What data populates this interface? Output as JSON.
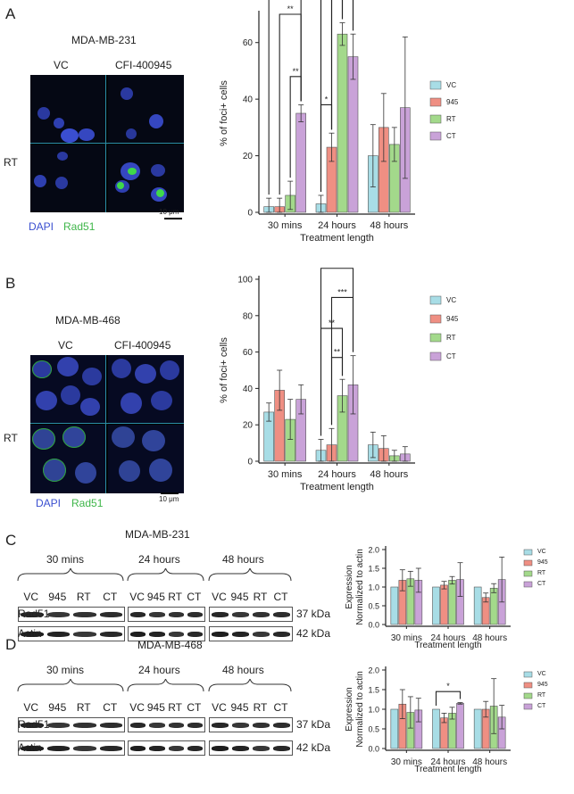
{
  "panels": {
    "A": {
      "letter": "A",
      "cell_line": "MDA-MB-231",
      "col_labels": [
        "VC",
        "CFI-400945"
      ],
      "row_label": "RT",
      "stain_labels": [
        "DAPI",
        "Rad51"
      ],
      "scale_bar": "10 μm"
    },
    "B": {
      "letter": "B",
      "cell_line": "MDA-MB-468",
      "col_labels": [
        "VC",
        "CFI-400945"
      ],
      "row_label": "RT",
      "stain_labels": [
        "DAPI",
        "Rad51"
      ],
      "scale_bar": "10 μm"
    },
    "C": {
      "letter": "C",
      "cell_line": "MDA-MB-231",
      "time_groups": [
        "30 mins",
        "24 hours",
        "48 hours"
      ],
      "lane_labels": [
        "VC",
        "945",
        "RT",
        "CT"
      ],
      "rows": [
        {
          "name": "Rad51",
          "kda": "37 kDa"
        },
        {
          "name": "Actin",
          "kda": "42 kDa"
        }
      ]
    },
    "D": {
      "letter": "D",
      "cell_line": "MDA-MB-468",
      "time_groups": [
        "30 mins",
        "24 hours",
        "48 hours"
      ],
      "lane_labels": [
        "VC",
        "945",
        "RT",
        "CT"
      ],
      "rows": [
        {
          "name": "Rad51",
          "kda": "37 kDa"
        },
        {
          "name": "Actin",
          "kda": "42 kDa"
        }
      ]
    }
  },
  "colors": {
    "VC": "#a8dde6",
    "945": "#ef8f83",
    "RT": "#a3d98b",
    "CT": "#c9a2d8",
    "dapi": "#3a4fd0",
    "rad51": "#3fb64a"
  },
  "chart_data": [
    {
      "id": "A",
      "type": "bar",
      "categories": [
        "30 mins",
        "24 hours",
        "48 hours"
      ],
      "xlabel": "Treatment length",
      "ylabel": "% of foci+ cells",
      "ylim": [
        0,
        70
      ],
      "yticks": [
        0,
        20,
        40,
        60
      ],
      "legend_position": "right",
      "series": [
        {
          "name": "VC",
          "values": [
            2,
            3,
            20
          ],
          "errors": [
            3,
            3,
            11
          ]
        },
        {
          "name": "945",
          "values": [
            2,
            23,
            30
          ],
          "errors": [
            3,
            5,
            12
          ]
        },
        {
          "name": "RT",
          "values": [
            6,
            63,
            24
          ],
          "errors": [
            5,
            4,
            6
          ]
        },
        {
          "name": "CT",
          "values": [
            35,
            55,
            37
          ],
          "errors": [
            3,
            8,
            25
          ]
        }
      ],
      "annotations": [
        {
          "text": "**",
          "group": 0,
          "from": 0,
          "to": 3,
          "level": 94
        },
        {
          "text": "**",
          "group": 0,
          "from": 1,
          "to": 3,
          "level": 70
        },
        {
          "text": "**",
          "group": 0,
          "from": 2,
          "to": 3,
          "level": 48
        },
        {
          "text": "****",
          "group": 1,
          "from": 0,
          "to": 3,
          "level": 128
        },
        {
          "text": "**",
          "group": 1,
          "from": 1,
          "to": 3,
          "level": 114
        },
        {
          "text": "****",
          "group": 1,
          "from": 0,
          "to": 2,
          "level": 97
        },
        {
          "text": "***",
          "group": 1,
          "from": 1,
          "to": 2,
          "level": 81
        },
        {
          "text": "*",
          "group": 1,
          "from": 0,
          "to": 1,
          "level": 38
        }
      ]
    },
    {
      "id": "B",
      "type": "bar",
      "categories": [
        "30 mins",
        "24 hours",
        "48 hours"
      ],
      "xlabel": "Treatment length",
      "ylabel": "% of foci+ cells",
      "ylim": [
        0,
        100
      ],
      "yticks": [
        0,
        20,
        40,
        60,
        80,
        100
      ],
      "legend_position": "right",
      "series": [
        {
          "name": "VC",
          "values": [
            27,
            6,
            9
          ],
          "errors": [
            5,
            6,
            7
          ]
        },
        {
          "name": "945",
          "values": [
            39,
            9,
            7
          ],
          "errors": [
            11,
            9,
            7
          ]
        },
        {
          "name": "RT",
          "values": [
            23,
            36,
            3
          ],
          "errors": [
            11,
            9,
            3
          ]
        },
        {
          "name": "CT",
          "values": [
            34,
            42,
            4
          ],
          "errors": [
            8,
            16,
            4
          ]
        }
      ],
      "annotations": [
        {
          "text": "***",
          "group": 1,
          "from": 0,
          "to": 3,
          "level": 106
        },
        {
          "text": "***",
          "group": 1,
          "from": 1,
          "to": 3,
          "level": 90
        },
        {
          "text": "**",
          "group": 1,
          "from": 0,
          "to": 2,
          "level": 73
        },
        {
          "text": "**",
          "group": 1,
          "from": 1,
          "to": 2,
          "level": 57
        }
      ]
    },
    {
      "id": "C",
      "type": "bar",
      "categories": [
        "30 mins",
        "24 hours",
        "48 hours"
      ],
      "xlabel": "Treatment length",
      "ylabel": "Expression Normalized to actin",
      "ylim": [
        0,
        2.0
      ],
      "yticks": [
        0.0,
        0.5,
        1.0,
        1.5,
        2.0
      ],
      "legend_position": "right",
      "series": [
        {
          "name": "VC",
          "values": [
            1.0,
            1.0,
            1.0
          ],
          "errors": [
            0,
            0,
            0
          ]
        },
        {
          "name": "945",
          "values": [
            1.18,
            1.05,
            0.72
          ],
          "errors": [
            0.28,
            0.1,
            0.12
          ]
        },
        {
          "name": "RT",
          "values": [
            1.22,
            1.18,
            0.97
          ],
          "errors": [
            0.2,
            0.1,
            0.12
          ]
        },
        {
          "name": "CT",
          "values": [
            1.18,
            1.2,
            1.2
          ],
          "errors": [
            0.32,
            0.45,
            0.6
          ]
        }
      ],
      "annotations": []
    },
    {
      "id": "D",
      "type": "bar",
      "categories": [
        "30 mins",
        "24 hours",
        "48 hours"
      ],
      "xlabel": "Treatment length",
      "ylabel": "Expression Normalized to actin",
      "ylim": [
        0,
        2.0
      ],
      "yticks": [
        0.0,
        0.5,
        1.0,
        1.5,
        2.0
      ],
      "legend_position": "right",
      "series": [
        {
          "name": "VC",
          "values": [
            1.0,
            1.0,
            1.0
          ],
          "errors": [
            0,
            0,
            0
          ]
        },
        {
          "name": "945",
          "values": [
            1.13,
            0.78,
            1.0
          ],
          "errors": [
            0.37,
            0.12,
            0.2
          ]
        },
        {
          "name": "RT",
          "values": [
            0.92,
            0.9,
            1.08
          ],
          "errors": [
            0.4,
            0.15,
            0.7
          ]
        },
        {
          "name": "CT",
          "values": [
            0.98,
            1.15,
            0.8
          ],
          "errors": [
            0.3,
            0.02,
            0.3
          ]
        }
      ],
      "annotations": [
        {
          "text": "*",
          "group": 1,
          "from": 0,
          "to": 3,
          "level": 1.45
        }
      ]
    }
  ]
}
